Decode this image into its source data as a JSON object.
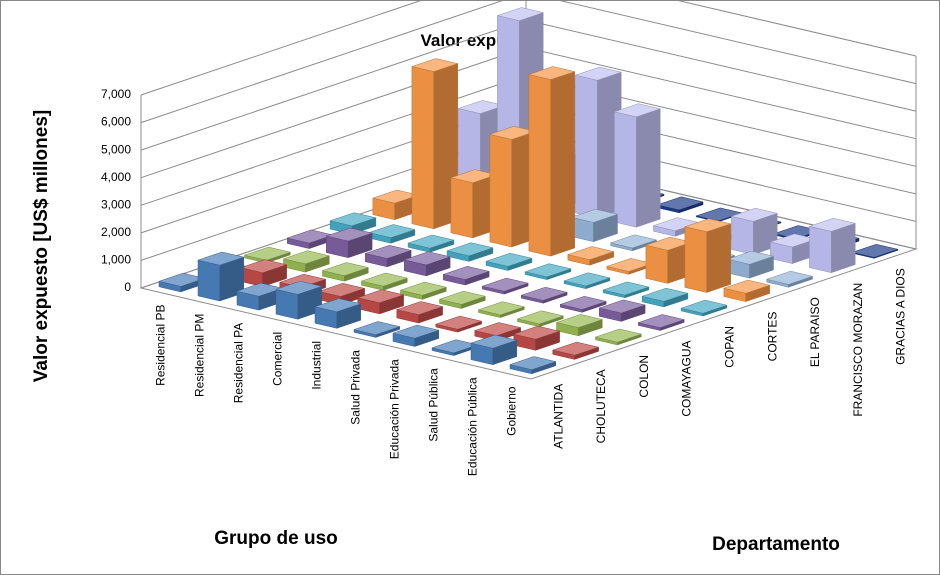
{
  "chart_data": {
    "type": "bar3d",
    "title": "Valor expuesto",
    "y_label": "Valor expuesto  [US$ millones]",
    "x_label": "Grupo de uso",
    "z_label": "Departamento",
    "categories": [
      "Residencial PB",
      "Residencial PM",
      "Residencial PA",
      "Comercial",
      "Industrial",
      "Salud Privada",
      "Educación Privada",
      "Salud Pública",
      "Educación Pública",
      "Gobierno"
    ],
    "series": [
      {
        "name": "ATLANTIDA",
        "color": "#4a7ebb",
        "values": [
          200,
          1300,
          500,
          900,
          600,
          100,
          300,
          100,
          600,
          150
        ]
      },
      {
        "name": "CHOLUTECA",
        "color": "#be4b48",
        "values": [
          100,
          500,
          300,
          300,
          400,
          300,
          100,
          200,
          400,
          150
        ]
      },
      {
        "name": "COLON",
        "color": "#98b954",
        "values": [
          100,
          300,
          200,
          150,
          150,
          150,
          100,
          100,
          300,
          100
        ]
      },
      {
        "name": "COMAYAGUA",
        "color": "#7d60a0",
        "values": [
          200,
          600,
          300,
          400,
          200,
          100,
          100,
          100,
          300,
          100
        ]
      },
      {
        "name": "COPAN",
        "color": "#46aac5",
        "values": [
          300,
          200,
          150,
          200,
          150,
          100,
          100,
          100,
          200,
          100
        ]
      },
      {
        "name": "CORTES",
        "color": "#f79646",
        "values": [
          600,
          5700,
          2000,
          3900,
          6400,
          200,
          100,
          1200,
          2200,
          300
        ]
      },
      {
        "name": "EL PARAISO",
        "color": "#95b3d7",
        "values": [
          300,
          500,
          300,
          300,
          700,
          100,
          100,
          200,
          500,
          100
        ]
      },
      {
        "name": "FRANCISCO MORAZAN",
        "color": "#c0c0f2",
        "values": [
          2800,
          6500,
          1800,
          5000,
          4000,
          200,
          200,
          1200,
          600,
          1500
        ]
      },
      {
        "name": "GRACIAS A DIOS",
        "color": "#1f3d8a",
        "values": [
          50,
          100,
          50,
          50,
          100,
          30,
          30,
          50,
          100,
          30
        ]
      }
    ],
    "ylim": [
      0,
      7000
    ],
    "yticks": [
      0,
      {
        "value": 1000,
        "label": "1,000"
      },
      {
        "value": 2000,
        "label": "2,000"
      },
      {
        "value": 3000,
        "label": "3,000"
      },
      {
        "value": 4000,
        "label": "4,000"
      },
      {
        "value": 5000,
        "label": "5,000"
      },
      {
        "value": 6000,
        "label": "6,000"
      },
      {
        "value": 7000,
        "label": "7,000"
      }
    ],
    "grid": true
  }
}
